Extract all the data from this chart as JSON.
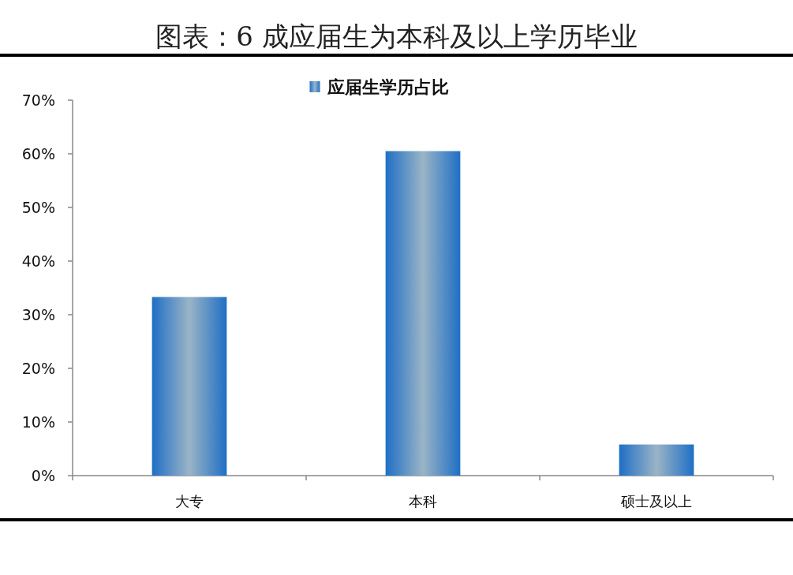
{
  "chart_data": {
    "type": "bar",
    "title": "图表：6 成应届生为本科及以上学历毕业",
    "categories": [
      "大专",
      "本科",
      "硕士及以上"
    ],
    "series": [
      {
        "name": "应届生学历占比",
        "color": "#1f6fc5",
        "values": [
          33.3,
          60.5,
          5.8
        ]
      }
    ],
    "ylim": [
      0,
      70
    ],
    "yticks": [
      {
        "value": 0,
        "label": "0%"
      },
      {
        "value": 10,
        "label": "10%"
      },
      {
        "value": 20,
        "label": "20%"
      },
      {
        "value": 30,
        "label": "30%"
      },
      {
        "value": 40,
        "label": "40%"
      },
      {
        "value": 50,
        "label": "50%"
      },
      {
        "value": 60,
        "label": "60%"
      },
      {
        "value": 70,
        "label": "70%"
      }
    ],
    "grid": false,
    "legend": "top"
  }
}
